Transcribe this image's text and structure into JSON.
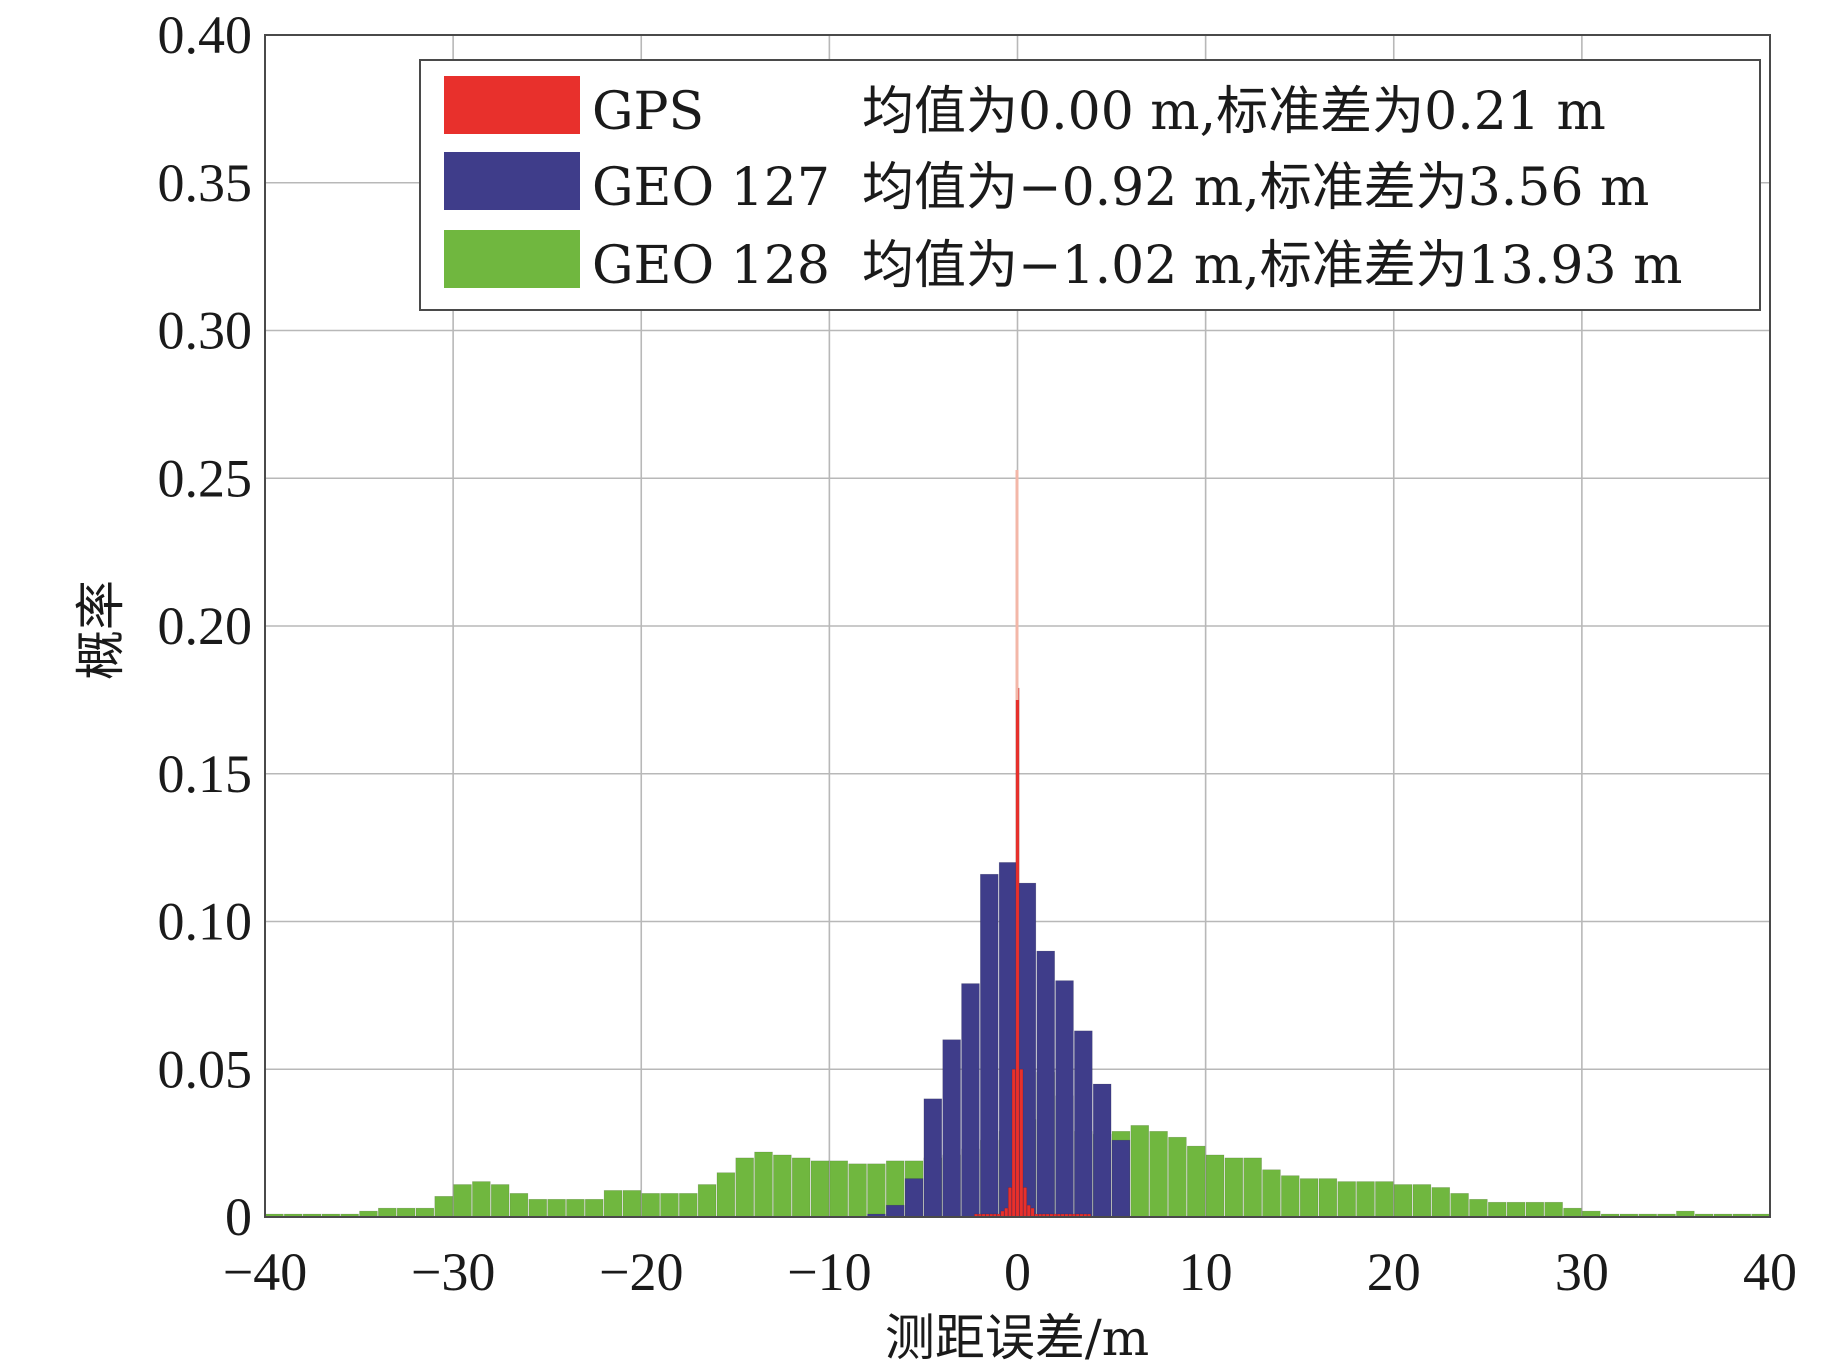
{
  "chart_data": {
    "type": "bar",
    "title": "",
    "xlabel": "测距误差/m",
    "ylabel": "概率",
    "xlim": [
      -40,
      40
    ],
    "ylim": [
      0,
      0.4
    ],
    "grid": true,
    "legend_position": "top-right",
    "x_ticks": [
      "−40",
      "−30",
      "−20",
      "−10",
      "0",
      "10",
      "20",
      "30",
      "40"
    ],
    "y_ticks": [
      "0",
      "0.05",
      "0.10",
      "0.15",
      "0.20",
      "0.25",
      "0.30",
      "0.35",
      "0.40"
    ],
    "legend": [
      {
        "series": "GPS",
        "label": "GPS",
        "stats": "均值为0.00 m,标准差为0.21 m"
      },
      {
        "series": "GEO 127",
        "label": "GEO 127",
        "stats": "均值为−0.92 m,标准差为3.56 m"
      },
      {
        "series": "GEO 128",
        "label": "GEO 128",
        "stats": "均值为−1.02 m,标准差为13.93 m"
      }
    ],
    "series": [
      {
        "name": "GEO 128",
        "color": "#70b73f",
        "bin_width": 0.95,
        "x": [
          -39.5,
          -38.5,
          -37.5,
          -36.5,
          -35.5,
          -34.5,
          -33.5,
          -32.5,
          -31.5,
          -30.5,
          -29.5,
          -28.5,
          -27.5,
          -26.5,
          -25.5,
          -24.5,
          -23.5,
          -22.5,
          -21.5,
          -20.5,
          -19.5,
          -18.5,
          -17.5,
          -16.5,
          -15.5,
          -14.5,
          -13.5,
          -12.5,
          -11.5,
          -10.5,
          -9.5,
          -8.5,
          -7.5,
          -6.5,
          -5.5,
          -4.5,
          -3.5,
          -2.5,
          -1.5,
          -0.5,
          0.5,
          1.5,
          2.5,
          3.5,
          4.5,
          5.5,
          6.5,
          7.5,
          8.5,
          9.5,
          10.5,
          11.5,
          12.5,
          13.5,
          14.5,
          15.5,
          16.5,
          17.5,
          18.5,
          19.5,
          20.5,
          21.5,
          22.5,
          23.5,
          24.5,
          25.5,
          26.5,
          27.5,
          28.5,
          29.5,
          30.5,
          31.5,
          32.5,
          33.5,
          34.5,
          35.5,
          36.5,
          37.5,
          38.5,
          39.5
        ],
        "values": [
          0.001,
          0.001,
          0.001,
          0.001,
          0.001,
          0.002,
          0.003,
          0.003,
          0.003,
          0.007,
          0.011,
          0.012,
          0.011,
          0.008,
          0.006,
          0.006,
          0.006,
          0.006,
          0.009,
          0.009,
          0.008,
          0.008,
          0.008,
          0.011,
          0.015,
          0.02,
          0.022,
          0.021,
          0.02,
          0.019,
          0.019,
          0.018,
          0.018,
          0.019,
          0.019,
          0.02,
          0.021,
          0.023,
          0.026,
          0.029,
          0.033,
          0.049,
          0.041,
          0.029,
          0.028,
          0.029,
          0.031,
          0.029,
          0.027,
          0.024,
          0.021,
          0.02,
          0.02,
          0.016,
          0.014,
          0.013,
          0.013,
          0.012,
          0.012,
          0.012,
          0.011,
          0.011,
          0.01,
          0.008,
          0.006,
          0.005,
          0.005,
          0.005,
          0.005,
          0.003,
          0.002,
          0.001,
          0.001,
          0.001,
          0.001,
          0.002,
          0.001,
          0.001,
          0.001,
          0.001
        ]
      },
      {
        "name": "GEO 127",
        "color": "#3f3d8a",
        "bin_width": 0.95,
        "x": [
          -7.5,
          -6.5,
          -5.5,
          -4.5,
          -3.5,
          -2.5,
          -1.5,
          -0.5,
          0.5,
          1.5,
          2.5,
          3.5,
          4.5,
          5.5
        ],
        "values": [
          0.001,
          0.004,
          0.013,
          0.04,
          0.06,
          0.079,
          0.116,
          0.12,
          0.113,
          0.09,
          0.08,
          0.063,
          0.045,
          0.026
        ]
      },
      {
        "name": "GPS",
        "color": "#e8302c",
        "bin_width": 0.18,
        "x": [
          -2.2,
          -2.0,
          -1.8,
          -1.6,
          -1.4,
          -1.2,
          -1.0,
          -0.8,
          -0.6,
          -0.4,
          -0.2,
          0.0,
          0.2,
          0.4,
          0.6,
          0.8,
          1.0,
          1.2,
          1.4,
          1.6,
          1.8,
          2.0,
          2.2,
          2.4,
          2.6,
          2.8,
          3.0,
          3.2,
          3.4,
          3.6,
          3.8
        ],
        "values": [
          0.001,
          0.001,
          0.001,
          0.001,
          0.001,
          0.001,
          0.001,
          0.002,
          0.003,
          0.01,
          0.05,
          0.179,
          0.05,
          0.01,
          0.004,
          0.003,
          0.001,
          0.001,
          0.001,
          0.001,
          0.001,
          0.001,
          0.001,
          0.001,
          0.001,
          0.001,
          0.001,
          0.001,
          0.001,
          0.001,
          0.001
        ]
      }
    ]
  }
}
